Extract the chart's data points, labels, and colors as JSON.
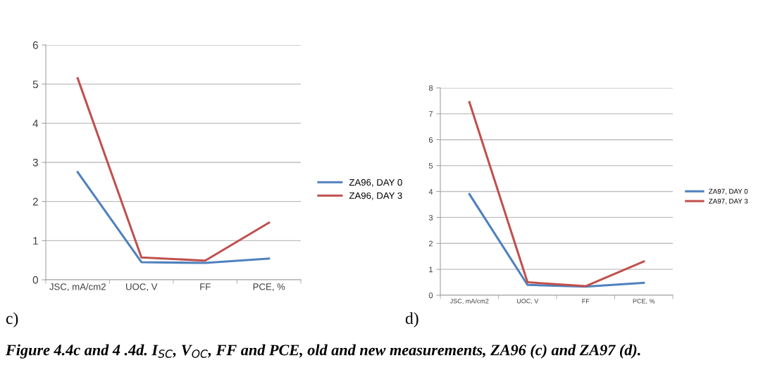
{
  "chart_data": [
    {
      "type": "line",
      "categories": [
        "JSC, mA/cm2",
        "UOC, V",
        "FF",
        "PCE, %"
      ],
      "series": [
        {
          "name": "ZA96, DAY 0",
          "color": "#4f81bd",
          "values": [
            2.75,
            0.45,
            0.43,
            0.54
          ]
        },
        {
          "name": "ZA96, DAY 3",
          "color": "#c0504d",
          "values": [
            5.15,
            0.57,
            0.49,
            1.46
          ]
        }
      ],
      "ylim": [
        0,
        6
      ],
      "yticks": [
        0,
        1,
        2,
        3,
        4,
        5,
        6
      ],
      "grid": "y",
      "legend": "right",
      "marker": "none",
      "line_style": "solid",
      "annotations": [
        "c)",
        "Figure 4.4c and 4 .4d. I$_{SC}$, V$_{OC}$, FF and PCE, old and new measurements, ZA96 (c) and ZA97 (d)."
      ]
    },
    {
      "type": "line",
      "categories": [
        "JSC, mA/cm2",
        "UOC, V",
        "FF",
        "PCE, %"
      ],
      "series": [
        {
          "name": "ZA97, DAY 0",
          "color": "#4f81bd",
          "values": [
            3.9,
            0.4,
            0.33,
            0.48
          ]
        },
        {
          "name": "ZA97, DAY 3",
          "color": "#c0504d",
          "values": [
            7.45,
            0.5,
            0.35,
            1.3
          ]
        }
      ],
      "ylim": [
        0,
        8
      ],
      "yticks": [
        0,
        1,
        2,
        3,
        4,
        5,
        6,
        7,
        8
      ],
      "grid": "y",
      "legend": "right",
      "marker": "none",
      "line_style": "solid",
      "annotations": [
        "d)"
      ]
    }
  ]
}
